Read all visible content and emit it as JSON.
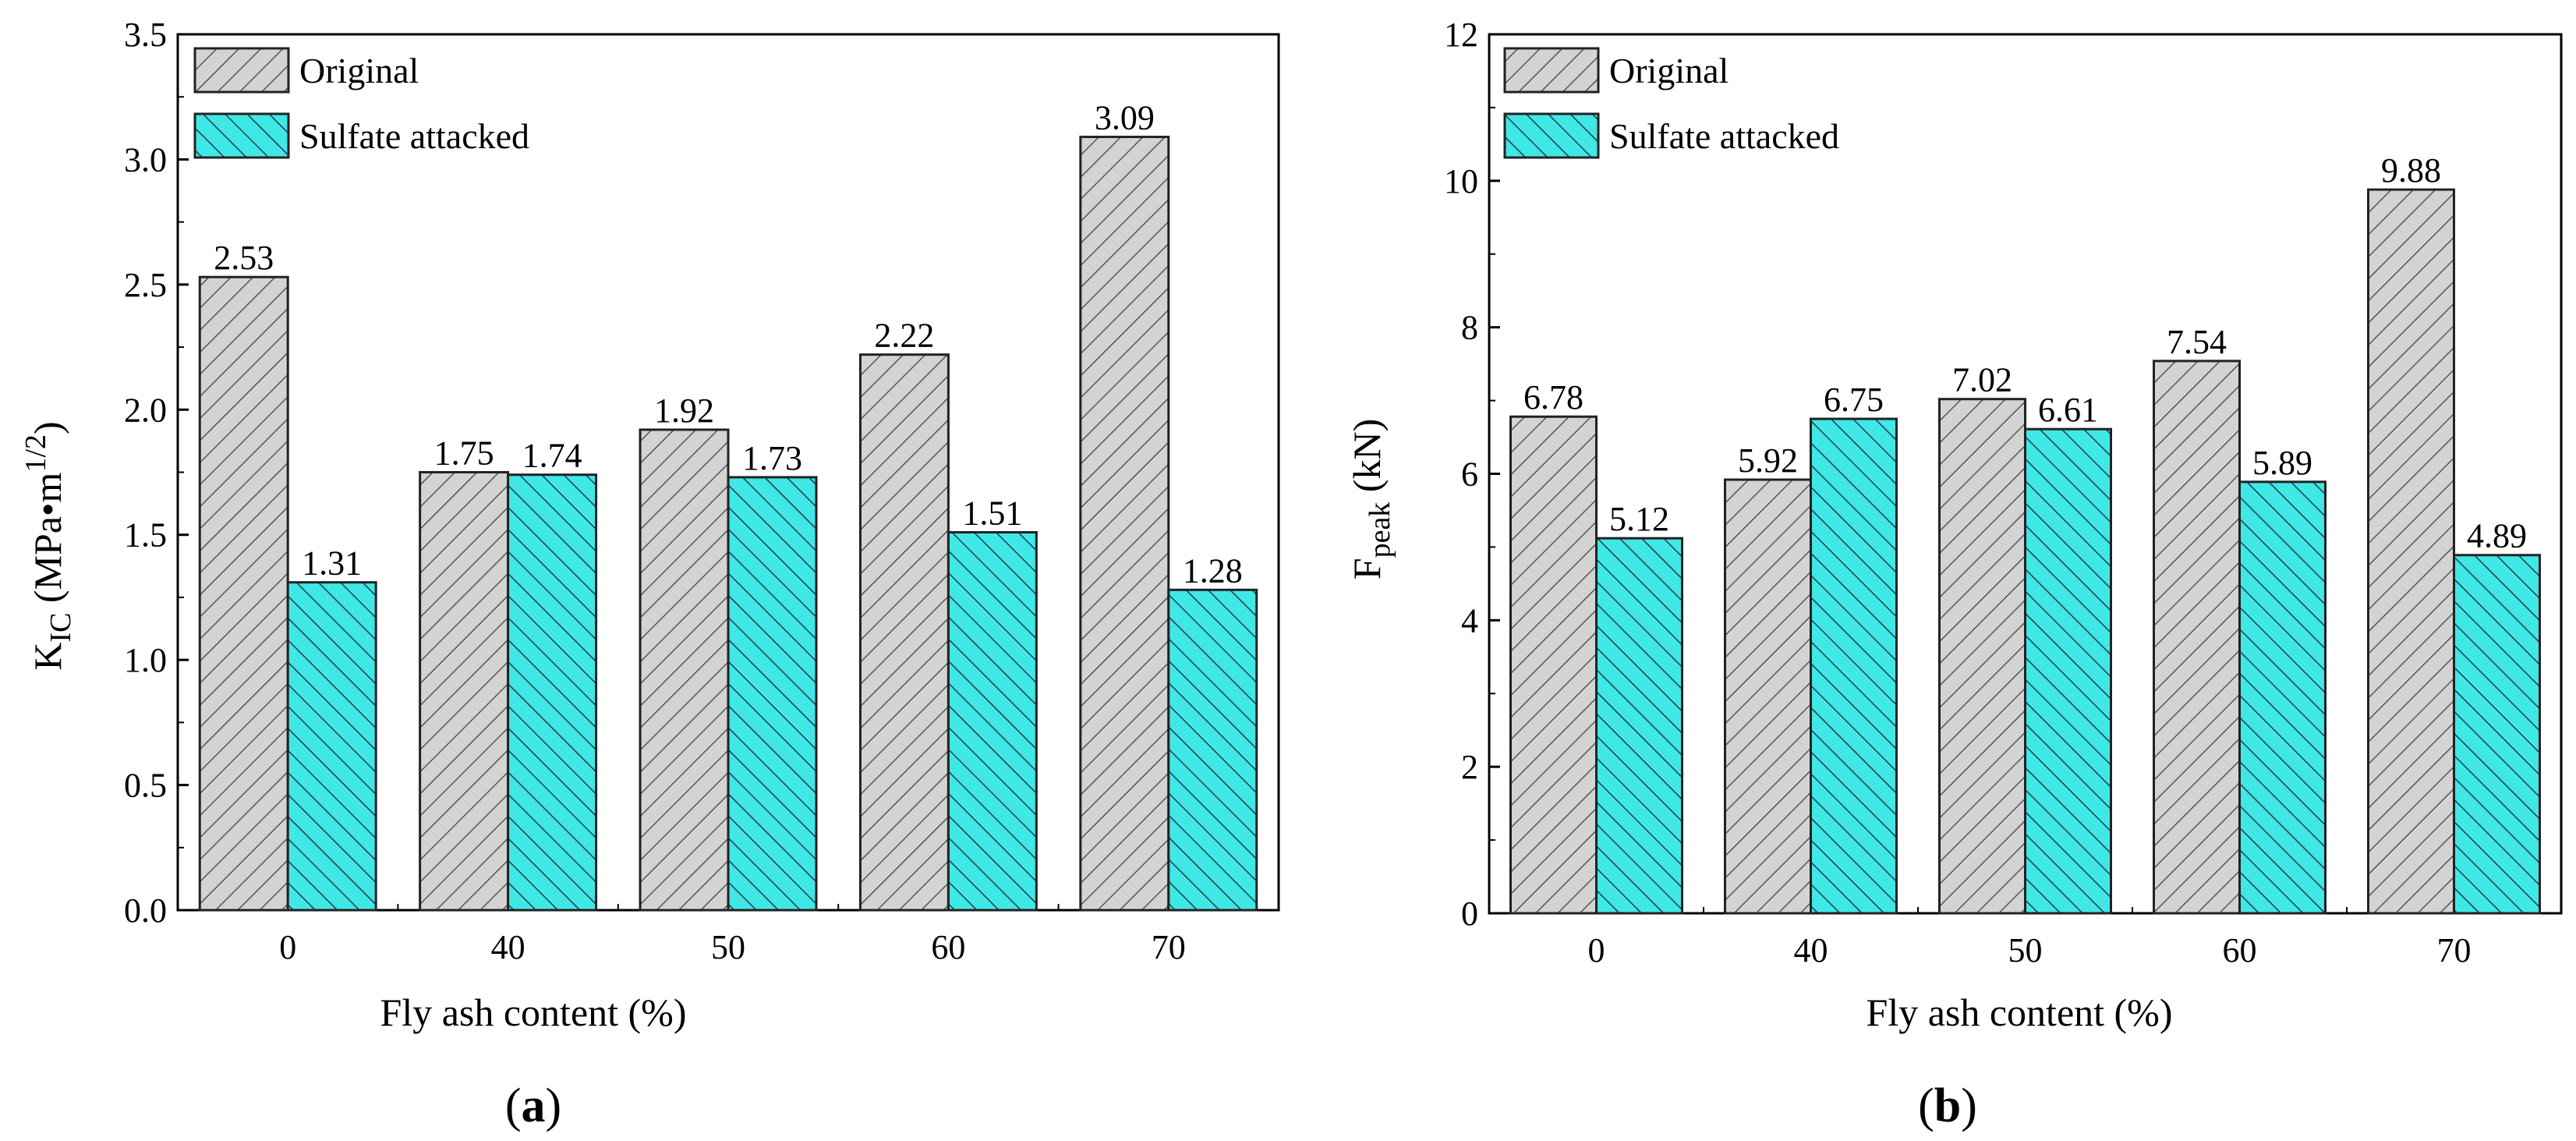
{
  "chart_data": [
    {
      "type": "bar",
      "panel_label": "a",
      "categories": [
        "0",
        "40",
        "50",
        "60",
        "70"
      ],
      "series": [
        {
          "name": "Original",
          "color": "#d3d3d3",
          "hatch": "forward",
          "values": [
            2.53,
            1.75,
            1.92,
            2.22,
            3.09
          ],
          "labels": [
            "2.53",
            "1.75",
            "1.92",
            "2.22",
            "3.09"
          ]
        },
        {
          "name": "Sulfate attacked",
          "color": "#3fe8e6",
          "hatch": "back",
          "values": [
            1.31,
            1.74,
            1.73,
            1.51,
            1.28
          ],
          "labels": [
            "1.31",
            "1.74",
            "1.73",
            "1.51",
            "1.28"
          ]
        }
      ],
      "xlabel": "Fly ash content (%)",
      "ylabel": {
        "base": "K",
        "sub": "IC",
        "unit_open": " (MPa•m",
        "sup": "1/2",
        "unit_close": ")"
      },
      "ylim": [
        0,
        3.5
      ],
      "yticks": [
        "0.0",
        "0.5",
        "1.0",
        "1.5",
        "2.0",
        "2.5",
        "3.0",
        "3.5"
      ],
      "legend_position": "top-left",
      "grid": false
    },
    {
      "type": "bar",
      "panel_label": "b",
      "categories": [
        "0",
        "40",
        "50",
        "60",
        "70"
      ],
      "series": [
        {
          "name": "Original",
          "color": "#d3d3d3",
          "hatch": "forward",
          "values": [
            6.78,
            5.92,
            7.02,
            7.54,
            9.88
          ],
          "labels": [
            "6.78",
            "5.92",
            "7.02",
            "7.54",
            "9.88"
          ]
        },
        {
          "name": "Sulfate attacked",
          "color": "#3fe8e6",
          "hatch": "back",
          "values": [
            5.12,
            6.75,
            6.61,
            5.89,
            4.89
          ],
          "labels": [
            "5.12",
            "6.75",
            "6.61",
            "5.89",
            "4.89"
          ]
        }
      ],
      "xlabel": "Fly ash content (%)",
      "ylabel": {
        "base": "F",
        "sub": "peak",
        "unit_open": " (kN)",
        "sup": "",
        "unit_close": ""
      },
      "ylim": [
        0,
        12
      ],
      "yticks": [
        "0",
        "2",
        "4",
        "6",
        "8",
        "10",
        "12"
      ],
      "legend_position": "top-left",
      "grid": false
    }
  ]
}
